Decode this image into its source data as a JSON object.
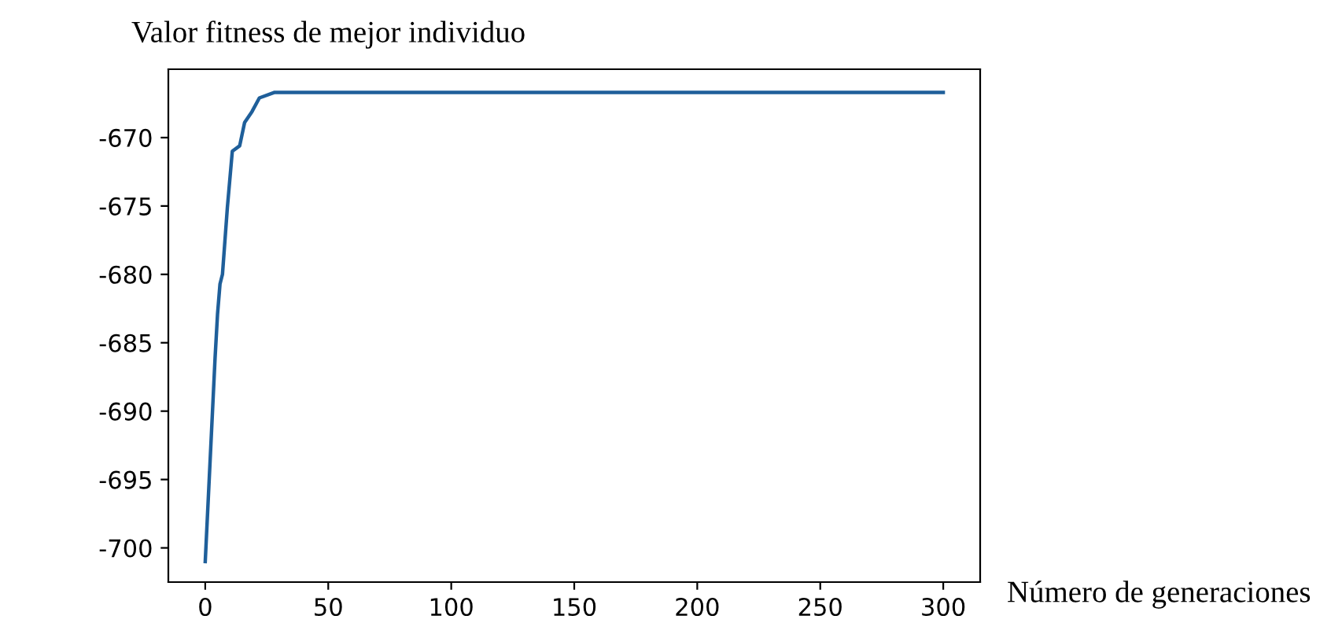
{
  "chart_data": {
    "type": "line",
    "ylabel": "Valor fitness de mejor individuo",
    "xlabel": "Número de generaciones",
    "x": [
      0,
      4,
      5,
      6,
      7,
      9,
      11,
      14,
      16,
      19,
      22,
      28,
      300
    ],
    "series": [
      {
        "color": "#1f5f9a",
        "values": [
          -701.0,
          -686.1,
          -682.9,
          -680.7,
          -680.0,
          -675.1,
          -671.0,
          -670.6,
          -668.9,
          -668.1,
          -667.1,
          -666.7,
          -666.7
        ]
      }
    ],
    "xlim": [
      -15,
      315
    ],
    "xticks": [
      0,
      50,
      100,
      150,
      200,
      250,
      300
    ],
    "ylim": [
      -702.5,
      -665
    ],
    "yticks": [
      -700,
      -695,
      -690,
      -685,
      -680,
      -675,
      -670
    ],
    "grid": false,
    "legend": false,
    "marker": "none",
    "line_style": "solid"
  }
}
